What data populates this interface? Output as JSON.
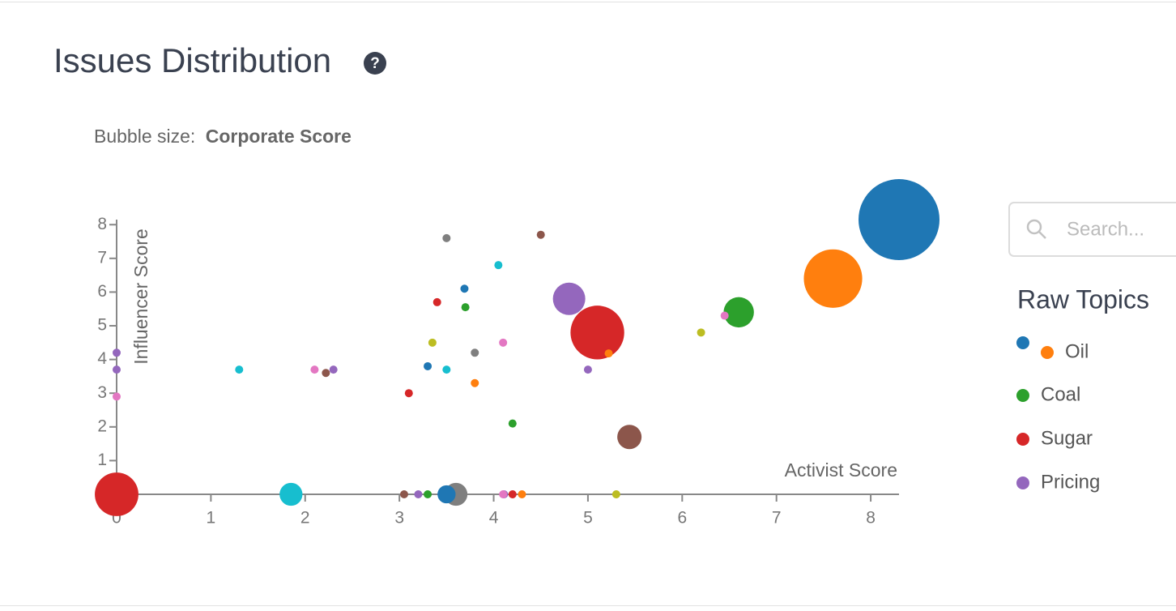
{
  "chart_data": {
    "type": "scatter",
    "title": "Issues Distribution",
    "size_label": "Bubble size:",
    "size_field": "Corporate Score",
    "x_label": "Activist Score",
    "y_label": "Influencer Score",
    "search_placeholder": "Search...",
    "legend_title": "Raw Topics",
    "xlim": [
      0,
      8.3
    ],
    "ylim": [
      0,
      8.15
    ],
    "xticks": [
      0,
      1,
      2,
      3,
      4,
      5,
      6,
      7,
      8
    ],
    "yticks": [
      0,
      1,
      2,
      3,
      4,
      5,
      6,
      7,
      8
    ],
    "series": [
      {
        "name": null,
        "color": "#1f77b4",
        "legend": true,
        "x": [
          8.3,
          3.69,
          3.3,
          3.5
        ],
        "values": [
          8.15,
          6.1,
          3.8,
          0
        ],
        "sizes": [
          100,
          1,
          1,
          5
        ]
      },
      {
        "name": "Oil",
        "color": "#ff7f0e",
        "legend": true,
        "x": [
          7.6,
          5.22,
          3.8,
          4.3
        ],
        "values": [
          6.4,
          4.18,
          3.3,
          0
        ],
        "sizes": [
          52,
          1,
          1,
          1
        ]
      },
      {
        "name": "Coal",
        "color": "#2ca02c",
        "legend": true,
        "x": [
          6.6,
          3.7,
          4.2,
          3.3
        ],
        "values": [
          5.4,
          5.55,
          2.1,
          0
        ],
        "sizes": [
          14,
          1,
          1,
          1
        ]
      },
      {
        "name": "Sugar",
        "color": "#d62728",
        "legend": true,
        "x": [
          5.1,
          3.4,
          3.1,
          0,
          4.2
        ],
        "values": [
          4.8,
          5.7,
          3.0,
          0,
          0
        ],
        "sizes": [
          44,
          1,
          1,
          29,
          1
        ]
      },
      {
        "name": "Pricing",
        "color": "#9467bd",
        "legend": true,
        "x": [
          4.8,
          0,
          0,
          2.3,
          5.0,
          3.2,
          4.11
        ],
        "values": [
          5.8,
          4.2,
          3.7,
          3.7,
          3.7,
          0,
          0
        ],
        "sizes": [
          16,
          1,
          1,
          1,
          1,
          1,
          1
        ]
      },
      {
        "name": null,
        "color": "#8c564b",
        "legend": false,
        "x": [
          5.44,
          4.5,
          2.22,
          3.05
        ],
        "values": [
          1.7,
          7.7,
          3.6,
          0
        ],
        "sizes": [
          9,
          1,
          1,
          1
        ]
      },
      {
        "name": null,
        "color": "#e377c2",
        "legend": false,
        "x": [
          6.45,
          4.1,
          2.1,
          0,
          4.1
        ],
        "values": [
          5.3,
          4.5,
          3.7,
          2.9,
          0
        ],
        "sizes": [
          1,
          1,
          1,
          1,
          1
        ]
      },
      {
        "name": null,
        "color": "#7f7f7f",
        "legend": false,
        "x": [
          3.5,
          3.8,
          3.6
        ],
        "values": [
          7.6,
          4.2,
          0
        ],
        "sizes": [
          1,
          1,
          8
        ]
      },
      {
        "name": null,
        "color": "#bcbd22",
        "legend": false,
        "x": [
          6.2,
          3.35,
          5.3
        ],
        "values": [
          4.8,
          4.5,
          0
        ],
        "sizes": [
          1,
          1,
          1
        ]
      },
      {
        "name": null,
        "color": "#17becf",
        "legend": false,
        "x": [
          4.05,
          1.3,
          3.5,
          1.85
        ],
        "values": [
          6.8,
          3.7,
          3.7,
          0
        ],
        "sizes": [
          1,
          1,
          1,
          8
        ]
      }
    ]
  }
}
